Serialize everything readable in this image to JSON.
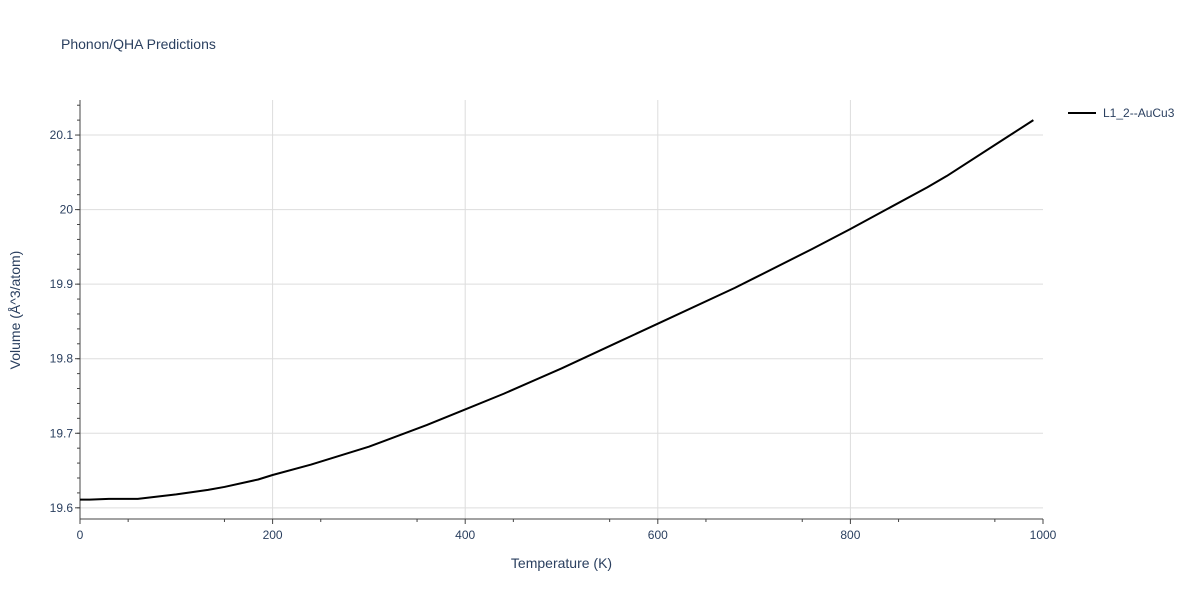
{
  "chart_data": {
    "type": "line",
    "title": "Phonon/QHA Predictions",
    "xlabel": "Temperature (K)",
    "ylabel": "Volume (Å^3/atom)",
    "xlim": [
      0,
      1000
    ],
    "ylim": [
      19.585,
      20.147
    ],
    "x_ticks": [
      0,
      200,
      400,
      600,
      800,
      1000
    ],
    "x_tick_labels": [
      "0",
      "200",
      "400",
      "600",
      "800",
      "1000"
    ],
    "y_ticks": [
      19.6,
      19.7,
      19.8,
      19.9,
      20.0,
      20.1
    ],
    "y_tick_labels": [
      "19.6",
      "19.7",
      "19.8",
      "19.9",
      "20",
      "20.1"
    ],
    "grid": true,
    "legend_position": "top-right",
    "series": [
      {
        "name": "L1_2--AuCu3",
        "color": "#000000",
        "x": [
          0,
          10,
          30,
          60,
          100,
          133,
          150,
          185,
          200,
          240,
          300,
          360,
          400,
          440,
          500,
          560,
          600,
          680,
          700,
          760,
          800,
          880,
          900,
          960,
          990
        ],
        "y": [
          19.611,
          19.611,
          19.612,
          19.612,
          19.618,
          19.624,
          19.628,
          19.638,
          19.644,
          19.658,
          19.682,
          19.711,
          19.732,
          19.753,
          19.787,
          19.823,
          19.847,
          19.895,
          19.908,
          19.947,
          19.974,
          20.03,
          20.045,
          20.095,
          20.12
        ]
      }
    ]
  }
}
